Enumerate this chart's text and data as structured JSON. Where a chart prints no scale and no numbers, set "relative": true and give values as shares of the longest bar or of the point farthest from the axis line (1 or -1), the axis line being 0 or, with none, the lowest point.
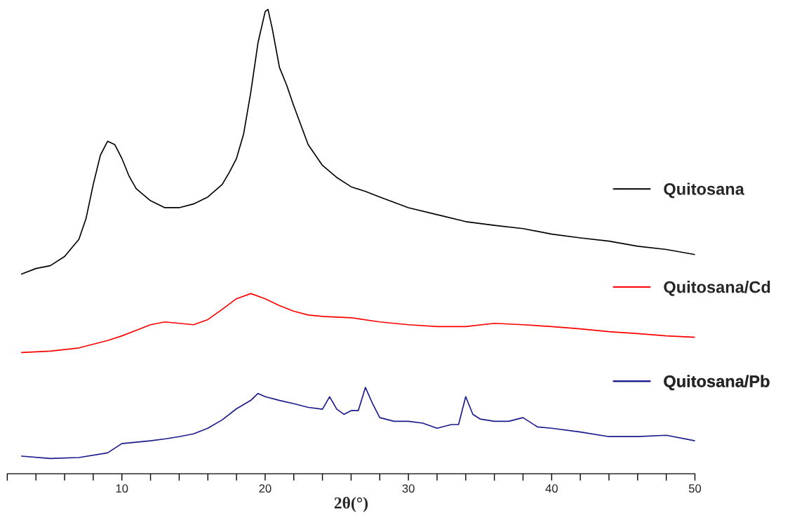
{
  "chart_data": {
    "type": "line",
    "relative": true,
    "xlabel": "2θ(°)",
    "xlim": [
      2,
      50
    ],
    "xticks": [
      {
        "value": 2,
        "label": null
      },
      {
        "value": 4,
        "label": null
      },
      {
        "value": 6,
        "label": null
      },
      {
        "value": 8,
        "label": null
      },
      10,
      {
        "value": 12,
        "label": null
      },
      {
        "value": 14,
        "label": null
      },
      {
        "value": 16,
        "label": null
      },
      {
        "value": 18,
        "label": null
      },
      20,
      {
        "value": 22,
        "label": null
      },
      {
        "value": 24,
        "label": null
      },
      {
        "value": 26,
        "label": null
      },
      {
        "value": 28,
        "label": null
      },
      30,
      {
        "value": 32,
        "label": null
      },
      {
        "value": 34,
        "label": null
      },
      {
        "value": 36,
        "label": null
      },
      {
        "value": 38,
        "label": null
      },
      40,
      {
        "value": 42,
        "label": null
      },
      {
        "value": 44,
        "label": null
      },
      {
        "value": 46,
        "label": null
      },
      {
        "value": 48,
        "label": null
      },
      50
    ],
    "tick_labels": "x",
    "grid": false,
    "legend": "right",
    "series": [
      {
        "name": "Quitosana",
        "color": "#000000",
        "x": [
          3,
          4,
          5,
          6,
          7,
          7.5,
          8,
          8.5,
          9,
          9.5,
          10,
          10.5,
          11,
          12,
          13,
          14,
          15,
          16,
          17,
          17.5,
          18,
          18.5,
          19,
          19.5,
          20,
          20.2,
          20.5,
          21,
          21.5,
          22,
          23,
          24,
          25,
          26,
          27,
          28,
          30,
          32,
          34,
          36,
          38,
          40,
          42,
          44,
          46,
          48,
          50
        ],
        "values": [
          0.43,
          0.442,
          0.448,
          0.468,
          0.505,
          0.55,
          0.623,
          0.686,
          0.716,
          0.709,
          0.679,
          0.641,
          0.614,
          0.588,
          0.573,
          0.573,
          0.581,
          0.596,
          0.623,
          0.649,
          0.679,
          0.732,
          0.822,
          0.928,
          0.995,
          1.0,
          0.958,
          0.875,
          0.837,
          0.792,
          0.709,
          0.664,
          0.638,
          0.618,
          0.608,
          0.596,
          0.573,
          0.558,
          0.543,
          0.535,
          0.528,
          0.516,
          0.508,
          0.501,
          0.49,
          0.483,
          0.472
        ]
      },
      {
        "name": "Quitosana/Cd",
        "color": "#ff0000",
        "x": [
          3,
          5,
          7,
          9,
          10,
          11,
          12,
          13,
          14,
          15,
          16,
          17,
          18,
          19,
          20,
          21,
          22,
          23,
          24,
          26,
          28,
          30,
          32,
          34,
          36,
          38,
          40,
          42,
          44,
          46,
          48,
          50
        ],
        "values": [
          0.261,
          0.264,
          0.271,
          0.287,
          0.297,
          0.309,
          0.321,
          0.327,
          0.324,
          0.321,
          0.332,
          0.354,
          0.377,
          0.388,
          0.377,
          0.362,
          0.35,
          0.342,
          0.339,
          0.336,
          0.327,
          0.321,
          0.317,
          0.317,
          0.324,
          0.321,
          0.317,
          0.312,
          0.306,
          0.302,
          0.297,
          0.294
        ]
      },
      {
        "name": "Quitosana/Pb",
        "color": "#1a1a8c",
        "x": [
          3,
          5,
          7,
          9,
          10,
          11,
          12,
          13,
          14,
          15,
          16,
          17,
          18,
          19,
          19.5,
          20,
          21,
          22,
          23,
          24,
          24.5,
          25,
          25.5,
          26,
          26.5,
          27,
          27.5,
          28,
          29,
          30,
          31,
          32,
          33,
          33.5,
          34,
          34.5,
          35,
          36,
          37,
          38,
          39,
          40,
          42,
          44,
          46,
          48,
          50
        ],
        "values": [
          0.038,
          0.033,
          0.035,
          0.045,
          0.065,
          0.068,
          0.071,
          0.075,
          0.08,
          0.086,
          0.098,
          0.116,
          0.14,
          0.158,
          0.173,
          0.166,
          0.158,
          0.151,
          0.143,
          0.139,
          0.166,
          0.139,
          0.128,
          0.136,
          0.136,
          0.186,
          0.151,
          0.121,
          0.113,
          0.113,
          0.109,
          0.098,
          0.106,
          0.106,
          0.166,
          0.128,
          0.118,
          0.113,
          0.113,
          0.121,
          0.101,
          0.098,
          0.09,
          0.08,
          0.08,
          0.083,
          0.071
        ]
      }
    ]
  }
}
